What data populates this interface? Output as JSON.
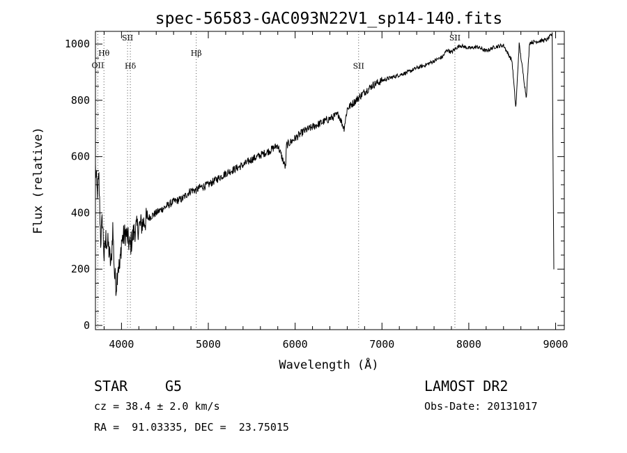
{
  "chart_data": {
    "type": "line",
    "title": "spec-56583-GAC093N22V1_sp14-140.fits",
    "xlabel": "Wavelength (Å)",
    "ylabel": "Flux (relative)",
    "xlim": [
      3700,
      9100
    ],
    "ylim": [
      -15,
      1045
    ],
    "x_ticks": [
      4000,
      5000,
      6000,
      7000,
      8000,
      9000
    ],
    "y_ticks": [
      0,
      200,
      400,
      600,
      800,
      1000
    ],
    "grid": false,
    "series": [
      {
        "style": "solid-black-noisy",
        "x": [
          3700,
          3720,
          3740,
          3760,
          3780,
          3800,
          3820,
          3850,
          3880,
          3900,
          3920,
          3940,
          3960,
          3980,
          4000,
          4050,
          4100,
          4150,
          4200,
          4300,
          4400,
          4500,
          4600,
          4700,
          4800,
          4860,
          4900,
          5000,
          5100,
          5200,
          5300,
          5400,
          5500,
          5600,
          5700,
          5800,
          5890,
          5900,
          6000,
          6100,
          6200,
          6300,
          6400,
          6500,
          6563,
          6600,
          6700,
          6800,
          6900,
          7000,
          7100,
          7200,
          7300,
          7400,
          7500,
          7600,
          7700,
          7750,
          7800,
          7850,
          7900,
          8000,
          8100,
          8200,
          8300,
          8400,
          8498,
          8542,
          8580,
          8662,
          8700,
          8800,
          8900,
          8960,
          8980
        ],
        "y": [
          560,
          470,
          520,
          300,
          380,
          240,
          310,
          280,
          210,
          350,
          180,
          140,
          220,
          200,
          300,
          330,
          280,
          340,
          350,
          380,
          400,
          420,
          440,
          450,
          480,
          480,
          490,
          500,
          520,
          540,
          555,
          570,
          590,
          605,
          620,
          640,
          560,
          640,
          665,
          690,
          705,
          720,
          735,
          750,
          700,
          770,
          800,
          830,
          855,
          870,
          880,
          890,
          900,
          915,
          925,
          940,
          955,
          980,
          970,
          985,
          995,
          985,
          990,
          975,
          990,
          995,
          940,
          770,
          1000,
          810,
          1005,
          1010,
          1015,
          1035,
          200
        ]
      }
    ],
    "line_markers": [
      {
        "label": "OII",
        "x": 3727,
        "y": 915
      },
      {
        "label": "Hθ",
        "x": 3798,
        "y": 958
      },
      {
        "label": "SII",
        "x": 4070,
        "y": 1013
      },
      {
        "label": "Hδ",
        "x": 4102,
        "y": 913
      },
      {
        "label": "Hβ",
        "x": 4861,
        "y": 958
      },
      {
        "label": "SII",
        "x": 6731,
        "y": 913
      },
      {
        "label": "SII",
        "x": 7840,
        "y": 1013
      }
    ]
  },
  "info": {
    "class": "STAR",
    "subclass": "G5",
    "cz": "cz = 38.4 ± 2.0 km/s",
    "coords": "RA =  91.03335, DEC =  23.75015",
    "survey": "LAMOST DR2",
    "obs_date": "Obs-Date: 20131017"
  }
}
